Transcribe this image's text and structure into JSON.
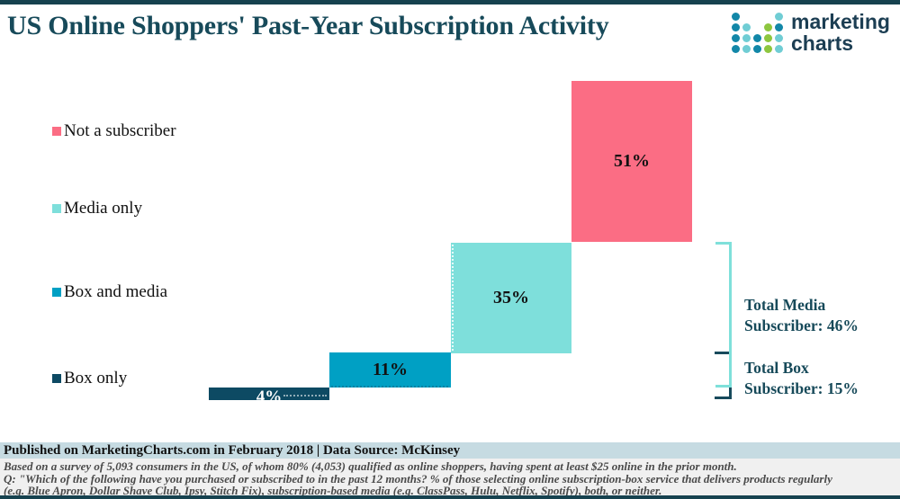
{
  "title": "US Online Shoppers' Past-Year Subscription Activity",
  "colors": {
    "frame_border": "#16424F",
    "title_text": "#174A5A",
    "not_subscriber": "#FB6D84",
    "media_only": "#7EDFDB",
    "box_and_media": "#00A0C4",
    "box_only": "#0D4A63",
    "bracket_media": "#7FE0DA",
    "bracket_box": "#174A5C",
    "footer_band_bg": "#C6DBE2",
    "footnotes_bg": "#F0F0F0"
  },
  "logo": {
    "line1": "marketing",
    "line2": "charts",
    "dot_colors": {
      "t": "#1287A8",
      "l": "#70CDD4",
      "g": "#8DC63F"
    },
    "pattern": [
      "t...l",
      "tl.gt",
      "tltgl",
      "tltgl"
    ]
  },
  "legend": {
    "items": [
      {
        "label": "Not a subscriber",
        "color": "#FB6D84"
      },
      {
        "label": "Media only",
        "color": "#7EDFDB"
      },
      {
        "label": "Box and media",
        "color": "#00A0C4"
      },
      {
        "label": "Box only",
        "color": "#0D4A63"
      }
    ]
  },
  "chart_data": {
    "type": "bar",
    "subtype": "waterfall (stacked steps, cumulative left-to-right)",
    "categories": [
      "Box only",
      "Box and media",
      "Media only",
      "Not a subscriber"
    ],
    "values": [
      4,
      11,
      35,
      51
    ],
    "data_labels": [
      "4%",
      "11%",
      "35%",
      "51%"
    ],
    "series_colors": [
      "#0D4A63",
      "#00A0C4",
      "#7EDFDB",
      "#FB6D84"
    ],
    "title": "US Online Shoppers' Past-Year Subscription Activity",
    "xlabel": "",
    "ylabel": "",
    "ylim": [
      0,
      101
    ],
    "grid": false,
    "legend_position": "left, vertical",
    "annotations": [
      {
        "label_line1": "Total Media",
        "label_line2": "Subscriber: 46%",
        "value": 46,
        "spans": [
          "Box and media",
          "Media only"
        ]
      },
      {
        "label_line1": "Total Box",
        "label_line2": "Subscriber: 15%",
        "value": 15,
        "spans": [
          "Box only",
          "Box and media"
        ]
      }
    ]
  },
  "totals": {
    "media": {
      "line1": "Total Media",
      "line2": "Subscriber: 46%"
    },
    "box": {
      "line1": "Total Box",
      "line2": "Subscriber: 15%"
    }
  },
  "footer": {
    "published": "Published on MarketingCharts.com in February 2018 | Data Source: McKinsey",
    "footnotes": [
      "Based on a survey of 5,093 consumers in the US, of whom 80% (4,053) qualified as online shoppers, having spent at least $25 online in the prior month.",
      "Q: \"Which of the following have you purchased or subscribed to in the past 12 months? % of those selecting online subscription-box service that delivers products regularly",
      "(e.g. Blue Apron, Dollar Shave Club, Ipsy, Stitch Fix), subscription-based media (e.g. ClassPass, Hulu, Netflix, Spotify), both, or neither."
    ]
  }
}
